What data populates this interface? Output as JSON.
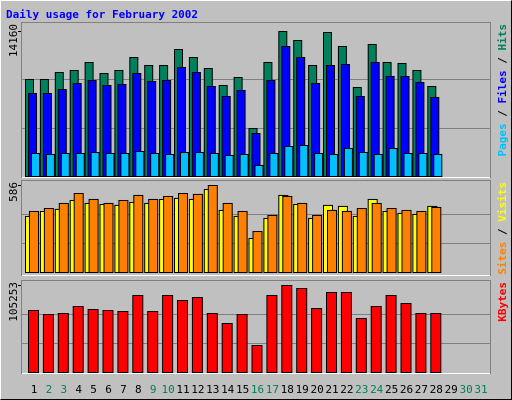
{
  "chart_data": [
    {
      "type": "bar",
      "title": "Daily usage for February 2002",
      "legend_separator": " / ",
      "ylim": [
        0,
        14160
      ],
      "yticks": [
        14160
      ],
      "series": [
        {
          "name": "Hits",
          "color": "#00805c",
          "values": [
            9473,
            9473,
            10157,
            10352,
            11133,
            10059,
            10352,
            11621,
            10840,
            10840,
            12402,
            11621,
            10547,
            8887,
            9668,
            4688,
            11133,
            14160,
            13281,
            10840,
            14062,
            12695,
            8691,
            12891,
            11133,
            11035,
            10352,
            8789,
            null,
            null,
            null
          ]
        },
        {
          "name": "Files",
          "color": "#0000ff",
          "values": [
            8106,
            8106,
            8496,
            9082,
            9375,
            8887,
            8985,
            10059,
            9277,
            9375,
            10645,
            10157,
            8789,
            7813,
            8399,
            4199,
            9375,
            12695,
            11621,
            9082,
            10840,
            10938,
            7813,
            11133,
            9766,
            9766,
            9180,
            7715,
            null,
            null,
            null
          ]
        },
        {
          "name": "Pages",
          "color": "#00c0ff",
          "values": [
            2246,
            2148,
            2246,
            2246,
            2344,
            2246,
            2246,
            2441,
            2246,
            2148,
            2344,
            2344,
            2246,
            2051,
            2148,
            1074,
            2246,
            2930,
            3027,
            2246,
            2148,
            2734,
            2344,
            2148,
            2734,
            2246,
            2246,
            2148,
            null,
            null,
            null
          ]
        }
      ]
    },
    {
      "type": "bar",
      "legend_separator": " / ",
      "ylim": [
        0,
        586
      ],
      "yticks": [
        586
      ],
      "series": [
        {
          "name": "Visits",
          "color": "#ffff00",
          "values": [
            377,
            411,
            425,
            485,
            465,
            458,
            452,
            472,
            465,
            492,
            499,
            492,
            559,
            418,
            377,
            229,
            364,
            519,
            458,
            364,
            452,
            445,
            377,
            492,
            411,
            398,
            391,
            445,
            null,
            null,
            null
          ]
        },
        {
          "name": "Sites",
          "color": "#ff8000",
          "values": [
            411,
            431,
            465,
            532,
            492,
            465,
            485,
            519,
            492,
            512,
            532,
            526,
            586,
            465,
            411,
            276,
            384,
            512,
            465,
            384,
            418,
            411,
            431,
            465,
            431,
            418,
            411,
            438,
            null,
            null,
            null
          ]
        }
      ]
    },
    {
      "type": "bar",
      "ylim": [
        0,
        105253
      ],
      "yticks": [
        105253
      ],
      "categories": [
        "1",
        "2",
        "3",
        "4",
        "5",
        "6",
        "7",
        "8",
        "9",
        "10",
        "11",
        "12",
        "13",
        "14",
        "15",
        "16",
        "17",
        "18",
        "19",
        "20",
        "21",
        "22",
        "23",
        "24",
        "25",
        "26",
        "27",
        "28",
        "29",
        "30",
        "31"
      ],
      "category_colors": [
        "#000000",
        "#00805c",
        "#00805c",
        "#000000",
        "#000000",
        "#000000",
        "#000000",
        "#000000",
        "#00805c",
        "#00805c",
        "#000000",
        "#000000",
        "#000000",
        "#000000",
        "#000000",
        "#00805c",
        "#00805c",
        "#000000",
        "#000000",
        "#000000",
        "#000000",
        "#000000",
        "#00805c",
        "#00805c",
        "#000000",
        "#000000",
        "#000000",
        "#000000",
        "#000000",
        "#00805c",
        "#00805c"
      ],
      "series": [
        {
          "name": "KBytes",
          "color": "#ff0000",
          "values": [
            75008,
            70168,
            71378,
            79847,
            76217,
            75008,
            73798,
            93155,
            73798,
            93155,
            87106,
            90735,
            71378,
            59280,
            70168,
            32665,
            93155,
            105253,
            101623,
            77427,
            96784,
            96784,
            65329,
            79847,
            93155,
            83476,
            71378,
            71378,
            null,
            null,
            null
          ]
        }
      ]
    }
  ]
}
